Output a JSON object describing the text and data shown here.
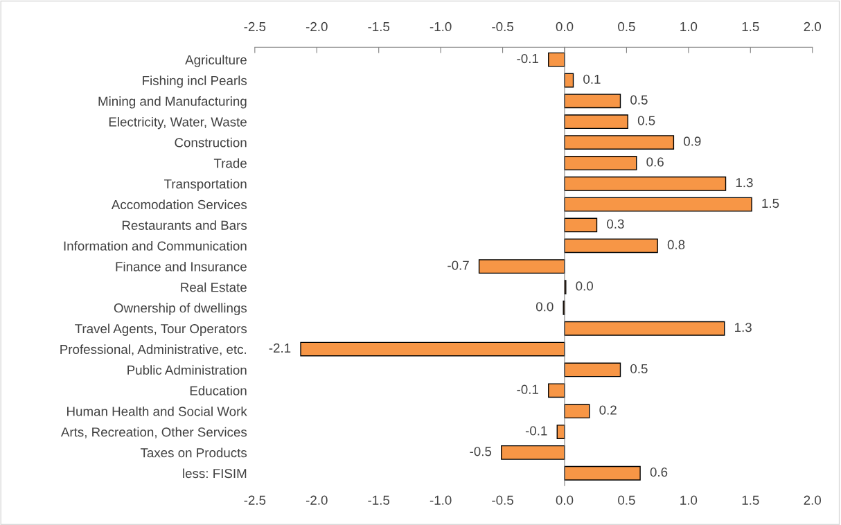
{
  "chart_data": {
    "type": "bar",
    "orientation": "horizontal",
    "categories": [
      "Agriculture",
      "Fishing incl Pearls",
      "Mining and Manufacturing",
      "Electricity, Water, Waste",
      "Construction",
      "Trade",
      "Transportation",
      "Accomodation Services",
      "Restaurants and Bars",
      "Information and Communication",
      "Finance and Insurance",
      "Real Estate",
      "Ownership of dwellings",
      "Travel Agents, Tour Operators",
      "Professional, Administrative, etc.",
      "Public Administration",
      "Education",
      "Human Health and Social Work",
      "Arts, Recreation, Other Services",
      "Taxes on Products",
      "less: FISIM"
    ],
    "values": [
      -0.13,
      0.07,
      0.45,
      0.51,
      0.88,
      0.58,
      1.3,
      1.51,
      0.26,
      0.75,
      -0.69,
      0.01,
      -0.01,
      1.29,
      -2.13,
      0.45,
      -0.13,
      0.2,
      -0.06,
      -0.51,
      0.61
    ],
    "value_labels": [
      "-0.1",
      "0.1",
      "0.5",
      "0.5",
      "0.9",
      "0.6",
      "1.3",
      "1.5",
      "0.3",
      "0.8",
      "-0.7",
      "0.0",
      "0.0",
      "1.3",
      "-2.1",
      "0.5",
      "-0.1",
      "0.2",
      "-0.1",
      "-0.5",
      "0.6"
    ],
    "color": "#f79646",
    "xlim": [
      -2.5,
      2.0
    ],
    "xticks": [
      {
        "value": -2.5,
        "label": "-2.5"
      },
      {
        "value": -2.0,
        "label": "-2.0"
      },
      {
        "value": -1.5,
        "label": "-1.5"
      },
      {
        "value": -1.0,
        "label": "-1.0"
      },
      {
        "value": -0.5,
        "label": "-0.5"
      },
      {
        "value": 0,
        "label": "0.0"
      },
      {
        "value": 0.5,
        "label": "0.5"
      },
      {
        "value": 1.0,
        "label": "1.0"
      },
      {
        "value": 1.5,
        "label": "1.5"
      },
      {
        "value": 2.0,
        "label": "2.0"
      }
    ],
    "x2lim": [
      -2.5,
      2.0
    ],
    "x2ticks": [
      {
        "value": -2.5,
        "label": "-2.5"
      },
      {
        "value": -2.0,
        "label": "-2.0"
      },
      {
        "value": -1.5,
        "label": "-1.5"
      },
      {
        "value": -1.0,
        "label": "-1.0"
      },
      {
        "value": -0.5,
        "label": "-0.5"
      },
      {
        "value": 0,
        "label": "0.0"
      },
      {
        "value": 0.5,
        "label": "0.5"
      },
      {
        "value": 1.0,
        "label": "1.0"
      },
      {
        "value": 1.5,
        "label": "1.5"
      },
      {
        "value": 2.0,
        "label": "2.0"
      }
    ]
  }
}
